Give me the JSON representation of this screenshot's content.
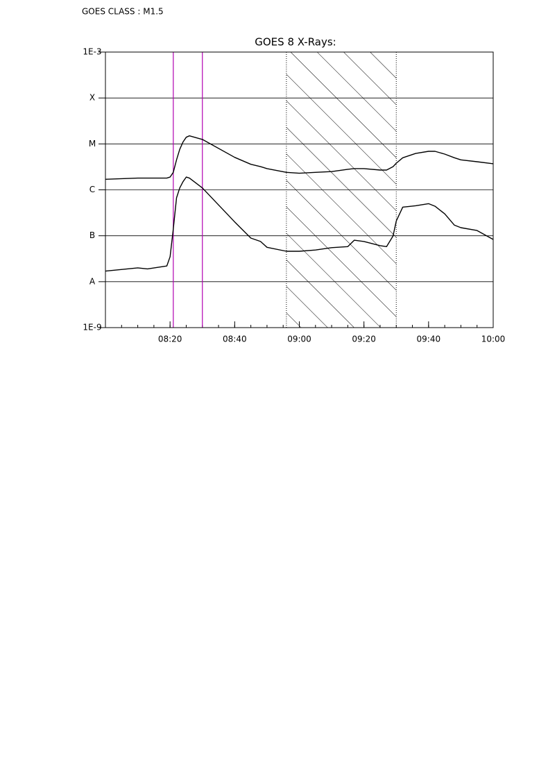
{
  "chart_data": {
    "type": "line",
    "annotation": "GOES CLASS : M1.5",
    "title": "GOES 8 X-Rays:",
    "x": [
      "08:00",
      "08:10",
      "08:13",
      "08:19",
      "08:20",
      "08:21",
      "08:22",
      "08:23",
      "08:24",
      "08:25",
      "08:26",
      "08:30",
      "08:40",
      "08:45",
      "08:48",
      "08:50",
      "08:56",
      "09:00",
      "09:05",
      "09:10",
      "09:15",
      "09:17",
      "09:20",
      "09:25",
      "09:27",
      "09:29",
      "09:30",
      "09:32",
      "09:36",
      "09:40",
      "09:42",
      "09:45",
      "09:48",
      "09:50",
      "09:55",
      "10:00"
    ],
    "series": [
      {
        "color": "#000000",
        "values": [
          1.7e-06,
          1.8e-06,
          1.8e-06,
          1.8e-06,
          1.9e-06,
          2.4e-06,
          4.5e-06,
          7.6e-06,
          1.1e-05,
          1.4e-05,
          1.5e-05,
          1.25e-05,
          5.1e-06,
          3.6e-06,
          3.2e-06,
          2.9e-06,
          2.4e-06,
          2.3e-06,
          2.4e-06,
          2.5e-06,
          2.8e-06,
          2.9e-06,
          2.9e-06,
          2.7e-06,
          2.7e-06,
          3.2e-06,
          3.8e-06,
          5e-06,
          6.2e-06,
          6.9e-06,
          6.9e-06,
          6e-06,
          5e-06,
          4.5e-06,
          4.1e-06,
          3.7e-06
        ]
      },
      {
        "color": "#000000",
        "values": [
          1.7e-08,
          2e-08,
          1.9e-08,
          2.2e-08,
          3.5e-08,
          1.4e-07,
          6.7e-07,
          1.1e-06,
          1.5e-06,
          1.9e-06,
          1.8e-06,
          1.1e-06,
          2e-07,
          8.9e-08,
          7.5e-08,
          5.6e-08,
          4.6e-08,
          4.6e-08,
          4.9e-08,
          5.5e-08,
          5.8e-08,
          8e-08,
          7.5e-08,
          6.1e-08,
          5.8e-08,
          9.9e-08,
          2.1e-07,
          4.2e-07,
          4.5e-07,
          5e-07,
          4.4e-07,
          3e-07,
          1.7e-07,
          1.5e-07,
          1.3e-07,
          8.3e-08
        ]
      }
    ],
    "markers": [
      {
        "x": "08:21",
        "color": "#b000b0"
      },
      {
        "x": "08:30",
        "color": "#b000b0"
      }
    ],
    "shaded_region": [
      "08:56",
      "09:30"
    ],
    "xlim": [
      "08:00",
      "10:00"
    ],
    "xticks": [
      "08:20",
      "08:40",
      "09:00",
      "09:20",
      "09:40",
      "10:00"
    ],
    "ylog": true,
    "ylim": [
      1e-09,
      0.001
    ],
    "yticks": [
      {
        "value": 1e-09,
        "label": "1E-9"
      },
      {
        "value": 1e-08,
        "label": "A"
      },
      {
        "value": 1e-07,
        "label": "B"
      },
      {
        "value": 1e-06,
        "label": "C"
      },
      {
        "value": 1e-05,
        "label": "M"
      },
      {
        "value": 0.0001,
        "label": "X"
      },
      {
        "value": 0.001,
        "label": "1E-3"
      }
    ],
    "grid": true
  }
}
